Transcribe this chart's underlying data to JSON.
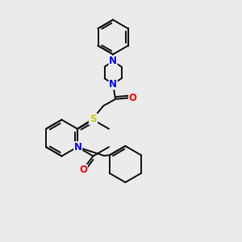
{
  "bg_color": "#ebebeb",
  "bond_color": "#1a1a1a",
  "n_color": "#0000ff",
  "o_color": "#ff0000",
  "s_color": "#cccc00",
  "lw": 1.5,
  "fs": 8.5,
  "figsize": [
    3.0,
    3.0
  ],
  "dpi": 100,
  "xlim": [
    0,
    10
  ],
  "ylim": [
    0,
    10
  ]
}
